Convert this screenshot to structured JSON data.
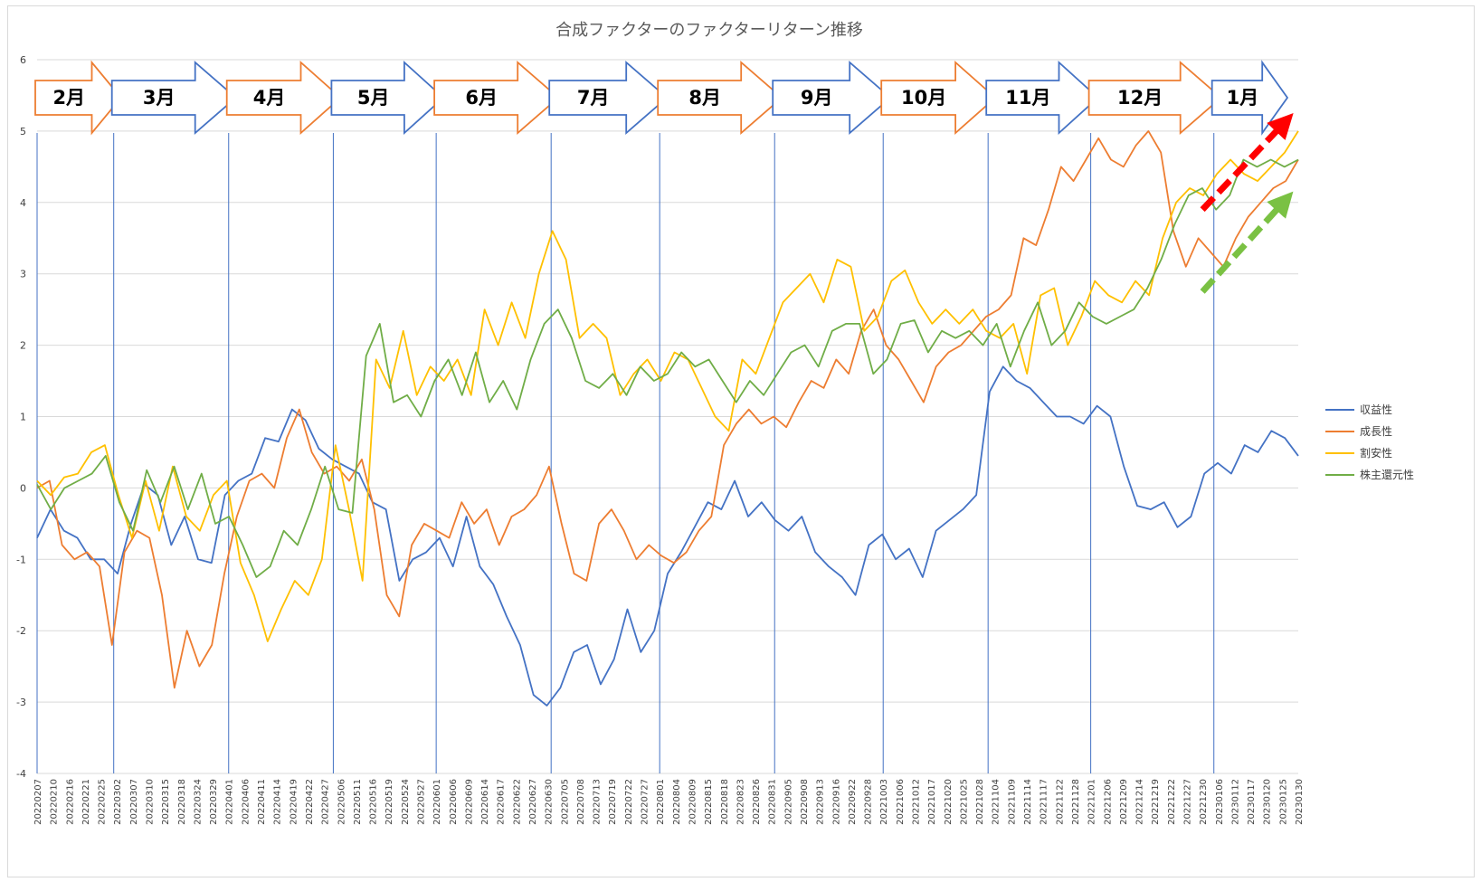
{
  "chart_data": {
    "type": "line",
    "title": "合成ファクターのファクターリターン推移",
    "xlabel": "",
    "ylabel": "",
    "ylim": [
      -4,
      6
    ],
    "y_ticks": [
      "-4",
      "-3",
      "-2",
      "-1",
      "0",
      "1",
      "2",
      "3",
      "4",
      "5",
      "6"
    ],
    "grid": "horizontal",
    "legend_position": "right",
    "x_tick_labels": [
      "20220207",
      "20220210",
      "20220216",
      "20220221",
      "20220225",
      "20220302",
      "20220307",
      "20220310",
      "20220315",
      "20220318",
      "20220324",
      "20220329",
      "20220401",
      "20220406",
      "20220411",
      "20220414",
      "20220419",
      "20220422",
      "20220427",
      "20220506",
      "20220511",
      "20220516",
      "20220519",
      "20220524",
      "20220527",
      "20220601",
      "20220606",
      "20220609",
      "20220614",
      "20220617",
      "20220622",
      "20220627",
      "20220630",
      "20220705",
      "20220708",
      "20220713",
      "20220719",
      "20220722",
      "20220727",
      "20220801",
      "20220804",
      "20220809",
      "20220815",
      "20220818",
      "20220823",
      "20220826",
      "20220831",
      "20220905",
      "20220908",
      "20220913",
      "20220916",
      "20220922",
      "20220928",
      "20221003",
      "20221006",
      "20221012",
      "20221017",
      "20221020",
      "20221025",
      "20221028",
      "20221104",
      "20221109",
      "20221114",
      "20221117",
      "20221122",
      "20221128",
      "20221201",
      "20221206",
      "20221209",
      "20221214",
      "20221219",
      "20221222",
      "20221227",
      "20221230",
      "20230106",
      "20230112",
      "20230117",
      "20230120",
      "20230125",
      "20230130"
    ],
    "series": [
      {
        "name": "収益性",
        "color": "#4472c4",
        "values": [
          -0.7,
          -0.3,
          -0.6,
          -0.7,
          -1.0,
          -1.0,
          -1.2,
          -0.5,
          0.05,
          -0.1,
          -0.8,
          -0.4,
          -1.0,
          -1.05,
          -0.1,
          0.1,
          0.2,
          0.7,
          0.65,
          1.1,
          0.95,
          0.55,
          0.4,
          0.3,
          0.2,
          -0.2,
          -0.3,
          -1.3,
          -1.0,
          -0.9,
          -0.7,
          -1.1,
          -0.4,
          -1.1,
          -1.35,
          -1.8,
          -2.2,
          -2.9,
          -3.05,
          -2.8,
          -2.3,
          -2.2,
          -2.75,
          -2.4,
          -1.7,
          -2.3,
          -2.0,
          -1.2,
          -0.9,
          -0.55,
          -0.2,
          -0.3,
          0.1,
          -0.4,
          -0.2,
          -0.45,
          -0.6,
          -0.4,
          -0.9,
          -1.1,
          -1.25,
          -1.5,
          -0.8,
          -0.65,
          -1.0,
          -0.85,
          -1.25,
          -0.6,
          -0.45,
          -0.3,
          -0.1,
          1.35,
          1.7,
          1.5,
          1.4,
          1.2,
          1.0,
          1.0,
          0.9,
          1.15,
          1.0,
          0.3,
          -0.25,
          -0.3,
          -0.2,
          -0.55,
          -0.4,
          0.2,
          0.35,
          0.2,
          0.6,
          0.5,
          0.8,
          0.7,
          0.45
        ]
      },
      {
        "name": "成長性",
        "color": "#ed7d31",
        "values": [
          0.0,
          0.1,
          -0.8,
          -1.0,
          -0.9,
          -1.1,
          -2.2,
          -0.9,
          -0.6,
          -0.7,
          -1.5,
          -2.8,
          -2.0,
          -2.5,
          -2.2,
          -1.2,
          -0.4,
          0.1,
          0.2,
          0.0,
          0.7,
          1.1,
          0.5,
          0.2,
          0.3,
          0.1,
          0.4,
          -0.3,
          -1.5,
          -1.8,
          -0.8,
          -0.5,
          -0.6,
          -0.7,
          -0.2,
          -0.5,
          -0.3,
          -0.8,
          -0.4,
          -0.3,
          -0.1,
          0.3,
          -0.5,
          -1.2,
          -1.3,
          -0.5,
          -0.3,
          -0.6,
          -1.0,
          -0.8,
          -0.95,
          -1.05,
          -0.9,
          -0.6,
          -0.4,
          0.6,
          0.9,
          1.1,
          0.9,
          1.0,
          0.85,
          1.2,
          1.5,
          1.4,
          1.8,
          1.6,
          2.2,
          2.5,
          2.0,
          1.8,
          1.5,
          1.2,
          1.7,
          1.9,
          2.0,
          2.2,
          2.4,
          2.5,
          2.7,
          3.5,
          3.4,
          3.9,
          4.5,
          4.3,
          4.6,
          4.9,
          4.6,
          4.5,
          4.8,
          5.0,
          4.7,
          3.6,
          3.1,
          3.5,
          3.3,
          3.1,
          3.5,
          3.8,
          4.0,
          4.2,
          4.3,
          4.6
        ]
      },
      {
        "name": "割安性",
        "color": "#ffc000",
        "values": [
          0.1,
          -0.1,
          0.15,
          0.2,
          0.5,
          0.6,
          -0.1,
          -0.7,
          0.1,
          -0.6,
          0.3,
          -0.4,
          -0.6,
          -0.1,
          0.1,
          -1.05,
          -1.5,
          -2.15,
          -1.7,
          -1.3,
          -1.5,
          -1.0,
          0.6,
          -0.3,
          -1.3,
          1.8,
          1.4,
          2.2,
          1.3,
          1.7,
          1.5,
          1.8,
          1.3,
          2.5,
          2.0,
          2.6,
          2.1,
          3.0,
          3.6,
          3.2,
          2.1,
          2.3,
          2.1,
          1.3,
          1.6,
          1.8,
          1.5,
          1.9,
          1.8,
          1.4,
          1.0,
          0.8,
          1.8,
          1.6,
          2.1,
          2.6,
          2.8,
          3.0,
          2.6,
          3.2,
          3.1,
          2.2,
          2.4,
          2.9,
          3.05,
          2.6,
          2.3,
          2.5,
          2.3,
          2.5,
          2.2,
          2.1,
          2.3,
          1.6,
          2.7,
          2.8,
          2.0,
          2.4,
          2.9,
          2.7,
          2.6,
          2.9,
          2.7,
          3.5,
          4.0,
          4.2,
          4.1,
          4.4,
          4.6,
          4.4,
          4.3,
          4.5,
          4.7,
          5.0
        ]
      },
      {
        "name": "株主還元性",
        "color": "#70ad47",
        "values": [
          0.05,
          -0.3,
          0.0,
          0.1,
          0.2,
          0.45,
          -0.2,
          -0.6,
          0.25,
          -0.2,
          0.3,
          -0.3,
          0.2,
          -0.5,
          -0.4,
          -0.8,
          -1.25,
          -1.1,
          -0.6,
          -0.8,
          -0.3,
          0.3,
          -0.3,
          -0.35,
          1.85,
          2.3,
          1.2,
          1.3,
          1.0,
          1.5,
          1.8,
          1.3,
          1.9,
          1.2,
          1.5,
          1.1,
          1.8,
          2.3,
          2.5,
          2.1,
          1.5,
          1.4,
          1.6,
          1.3,
          1.7,
          1.5,
          1.6,
          1.9,
          1.7,
          1.8,
          1.5,
          1.2,
          1.5,
          1.3,
          1.6,
          1.9,
          2.0,
          1.7,
          2.2,
          2.3,
          2.3,
          1.6,
          1.8,
          2.3,
          2.35,
          1.9,
          2.2,
          2.1,
          2.2,
          2.0,
          2.3,
          1.7,
          2.2,
          2.6,
          2.0,
          2.2,
          2.6,
          2.4,
          2.3,
          2.4,
          2.5,
          2.8,
          3.2,
          3.7,
          4.1,
          4.2,
          3.9,
          4.1,
          4.6,
          4.5,
          4.6,
          4.5,
          4.6
        ]
      }
    ],
    "month_arrows": [
      {
        "label": "2月",
        "color": "#ed7d31"
      },
      {
        "label": "3月",
        "color": "#4472c4"
      },
      {
        "label": "4月",
        "color": "#ed7d31"
      },
      {
        "label": "5月",
        "color": "#4472c4"
      },
      {
        "label": "6月",
        "color": "#ed7d31"
      },
      {
        "label": "7月",
        "color": "#4472c4"
      },
      {
        "label": "8月",
        "color": "#ed7d31"
      },
      {
        "label": "9月",
        "color": "#4472c4"
      },
      {
        "label": "10月",
        "color": "#ed7d31"
      },
      {
        "label": "11月",
        "color": "#4472c4"
      },
      {
        "label": "12月",
        "color": "#ed7d31"
      },
      {
        "label": "1月",
        "color": "#4472c4"
      }
    ],
    "month_boundaries": [
      "20220207",
      "20220301",
      "20220401",
      "20220502",
      "20220601",
      "20220701",
      "20220801",
      "20220901",
      "20221003",
      "20221101",
      "20221201",
      "20230104"
    ],
    "trend_arrows": [
      {
        "color": "#ff0000",
        "from": {
          "x": "20221230",
          "y": 3.9
        },
        "to": {
          "x": "20230130",
          "y": 5.3
        }
      },
      {
        "color": "#7ac143",
        "from": {
          "x": "20221230",
          "y": 2.75
        },
        "to": {
          "x": "20230130",
          "y": 4.2
        }
      }
    ]
  }
}
